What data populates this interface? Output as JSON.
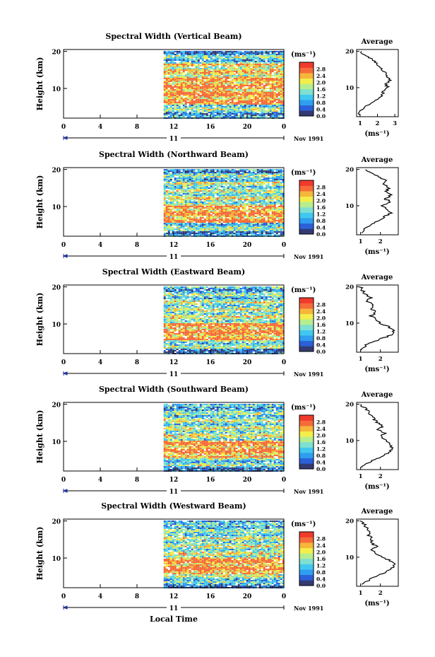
{
  "chart_data": {
    "type": "heatmap",
    "xlabel": "Local Time",
    "date_label": "Nov 1991",
    "day_label": "11",
    "xtick_labels": [
      "0",
      "4",
      "8",
      "12",
      "16",
      "20",
      "0"
    ],
    "xlim": [
      0,
      24
    ],
    "data_start_hour": 10.9,
    "ylabel": "Height (km)",
    "ytick_labels": [
      "10",
      "20"
    ],
    "ylim": [
      2,
      20.5
    ],
    "colorbar": {
      "unit_label": "(ms⁻¹)",
      "tick_labels": [
        "0.0",
        "0.4",
        "0.8",
        "1.2",
        "1.6",
        "2.0",
        "2.4",
        "2.8"
      ],
      "range": [
        0,
        3.2
      ],
      "colors": [
        "#333a73",
        "#2b60d8",
        "#2f9ef0",
        "#41c8f0",
        "#7ee0d0",
        "#b6ee8f",
        "#f3ee4b",
        "#f6b63a",
        "#f56b3a",
        "#f03a2c"
      ]
    },
    "average_title": "Average",
    "average_xlabel": "(ms⁻¹)",
    "panels": [
      {
        "title": "Spectral Width (Vertical Beam)",
        "avg_xticks": [
          "1",
          "2",
          "3"
        ],
        "avg_xlim": [
          0.8,
          3.2
        ],
        "average_profile": [
          {
            "h": 2.5,
            "v": 0.95
          },
          {
            "h": 4,
            "v": 1.1
          },
          {
            "h": 5,
            "v": 1.4
          },
          {
            "h": 6,
            "v": 1.8
          },
          {
            "h": 7,
            "v": 2.1
          },
          {
            "h": 8,
            "v": 2.25
          },
          {
            "h": 9,
            "v": 2.35
          },
          {
            "h": 10,
            "v": 2.6
          },
          {
            "h": 11,
            "v": 2.45
          },
          {
            "h": 12,
            "v": 2.75
          },
          {
            "h": 13,
            "v": 2.55
          },
          {
            "h": 14,
            "v": 2.45
          },
          {
            "h": 15,
            "v": 2.3
          },
          {
            "h": 16,
            "v": 2.1
          },
          {
            "h": 17,
            "v": 1.9
          },
          {
            "h": 18,
            "v": 1.6
          },
          {
            "h": 19,
            "v": 1.2
          },
          {
            "h": 20,
            "v": 1.0
          }
        ]
      },
      {
        "title": "Spectral Width (Northward Beam)",
        "avg_xticks": [
          "1",
          "2"
        ],
        "avg_xlim": [
          0.8,
          2.9
        ],
        "average_profile": [
          {
            "h": 2.5,
            "v": 1.0
          },
          {
            "h": 4,
            "v": 1.3
          },
          {
            "h": 5,
            "v": 1.6
          },
          {
            "h": 6,
            "v": 2.0
          },
          {
            "h": 7,
            "v": 2.2
          },
          {
            "h": 8,
            "v": 2.5
          },
          {
            "h": 9,
            "v": 2.4
          },
          {
            "h": 10,
            "v": 2.1
          },
          {
            "h": 11,
            "v": 2.55
          },
          {
            "h": 12,
            "v": 2.2
          },
          {
            "h": 13,
            "v": 2.6
          },
          {
            "h": 14,
            "v": 2.3
          },
          {
            "h": 15,
            "v": 2.45
          },
          {
            "h": 16,
            "v": 2.1
          },
          {
            "h": 17,
            "v": 2.3
          },
          {
            "h": 18,
            "v": 1.9
          },
          {
            "h": 19,
            "v": 1.5
          },
          {
            "h": 20,
            "v": 1.2
          }
        ]
      },
      {
        "title": "Spectral Width (Eastward Beam)",
        "avg_xticks": [
          "1",
          "2"
        ],
        "avg_xlim": [
          0.8,
          2.9
        ],
        "average_profile": [
          {
            "h": 2.5,
            "v": 1.0
          },
          {
            "h": 4,
            "v": 1.3
          },
          {
            "h": 5,
            "v": 1.7
          },
          {
            "h": 6,
            "v": 2.2
          },
          {
            "h": 7,
            "v": 2.6
          },
          {
            "h": 8,
            "v": 2.7
          },
          {
            "h": 9,
            "v": 2.4
          },
          {
            "h": 10,
            "v": 2.0
          },
          {
            "h": 11,
            "v": 1.8
          },
          {
            "h": 12,
            "v": 1.5
          },
          {
            "h": 13,
            "v": 1.8
          },
          {
            "h": 14,
            "v": 1.5
          },
          {
            "h": 15,
            "v": 1.7
          },
          {
            "h": 16,
            "v": 1.3
          },
          {
            "h": 17,
            "v": 1.5
          },
          {
            "h": 18,
            "v": 1.2
          },
          {
            "h": 19,
            "v": 1.1
          },
          {
            "h": 20,
            "v": 1.0
          }
        ]
      },
      {
        "title": "Spectral Width (Southward Beam)",
        "avg_xticks": [
          "1",
          "2"
        ],
        "avg_xlim": [
          0.8,
          2.9
        ],
        "average_profile": [
          {
            "h": 2.5,
            "v": 1.0
          },
          {
            "h": 4,
            "v": 1.4
          },
          {
            "h": 5,
            "v": 1.8
          },
          {
            "h": 6,
            "v": 2.2
          },
          {
            "h": 7,
            "v": 2.5
          },
          {
            "h": 8,
            "v": 2.6
          },
          {
            "h": 9,
            "v": 2.5
          },
          {
            "h": 10,
            "v": 2.3
          },
          {
            "h": 11,
            "v": 2.0
          },
          {
            "h": 12,
            "v": 2.2
          },
          {
            "h": 13,
            "v": 1.9
          },
          {
            "h": 14,
            "v": 2.1
          },
          {
            "h": 15,
            "v": 1.8
          },
          {
            "h": 16,
            "v": 1.7
          },
          {
            "h": 17,
            "v": 1.5
          },
          {
            "h": 18,
            "v": 1.4
          },
          {
            "h": 19,
            "v": 1.2
          },
          {
            "h": 20,
            "v": 1.0
          }
        ]
      },
      {
        "title": "Spectral Width (Westward Beam)",
        "avg_xticks": [
          "1",
          "2"
        ],
        "avg_xlim": [
          0.8,
          2.9
        ],
        "average_profile": [
          {
            "h": 2.5,
            "v": 1.0
          },
          {
            "h": 4,
            "v": 1.5
          },
          {
            "h": 5,
            "v": 1.9
          },
          {
            "h": 6,
            "v": 2.3
          },
          {
            "h": 7,
            "v": 2.6
          },
          {
            "h": 8,
            "v": 2.7
          },
          {
            "h": 9,
            "v": 2.5
          },
          {
            "h": 10,
            "v": 2.1
          },
          {
            "h": 11,
            "v": 1.8
          },
          {
            "h": 12,
            "v": 1.6
          },
          {
            "h": 13,
            "v": 1.8
          },
          {
            "h": 14,
            "v": 1.5
          },
          {
            "h": 15,
            "v": 1.6
          },
          {
            "h": 16,
            "v": 1.4
          },
          {
            "h": 17,
            "v": 1.5
          },
          {
            "h": 18,
            "v": 1.3
          },
          {
            "h": 19,
            "v": 1.2
          },
          {
            "h": 20,
            "v": 1.05
          }
        ]
      }
    ]
  }
}
